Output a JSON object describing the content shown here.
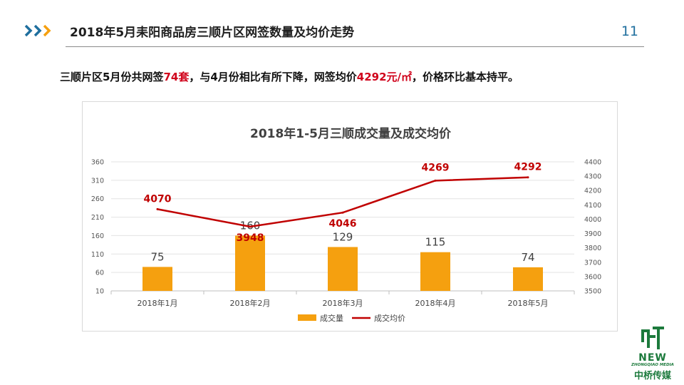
{
  "header": {
    "title": "2018年5月耒阳商品房三顺片区网签数量及均价走势",
    "page_number": "11"
  },
  "summary": {
    "part1": "三顺片区5月份共网签",
    "units": "74套",
    "part2": "，与4月份相比有所下降，网签均价",
    "price": "4292元/㎡",
    "part3": "，价格环比基本持平。"
  },
  "logo": {
    "word": "NEW",
    "sub": "ZHONGQIAO MEDIA",
    "name": "中桥传媒"
  },
  "colors": {
    "bar": "#f5a00f",
    "line": "#c00000",
    "accent": "#1f6f9e",
    "brand_green": "#1c7a3c"
  },
  "chart_data": {
    "type": "bar",
    "title": "2018年1-5月三顺成交量及成交均价",
    "categories": [
      "2018年1月",
      "2018年2月",
      "2018年3月",
      "2018年4月",
      "2018年5月"
    ],
    "series": [
      {
        "name": "成交量",
        "type": "bar",
        "axis": "left",
        "values": [
          75,
          160,
          129,
          115,
          74
        ]
      },
      {
        "name": "成交均价",
        "type": "line",
        "axis": "right",
        "values": [
          4070,
          3948,
          4046,
          4269,
          4292
        ]
      }
    ],
    "y_left": {
      "ticks": [
        10,
        60,
        110,
        160,
        210,
        260,
        310,
        360
      ],
      "range": [
        10,
        360
      ]
    },
    "y_right": {
      "ticks": [
        3500,
        3600,
        3700,
        3800,
        3900,
        4000,
        4100,
        4200,
        4300,
        4400
      ],
      "range": [
        3500,
        4400
      ]
    },
    "legend_position": "bottom",
    "grid": true
  }
}
